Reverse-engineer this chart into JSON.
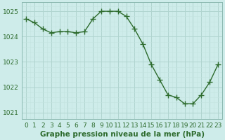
{
  "x": [
    0,
    1,
    2,
    3,
    4,
    5,
    6,
    7,
    8,
    9,
    10,
    11,
    12,
    13,
    14,
    15,
    16,
    17,
    18,
    19,
    20,
    21,
    22,
    23
  ],
  "y": [
    1024.7,
    1024.55,
    1024.3,
    1024.15,
    1024.2,
    1024.2,
    1024.15,
    1024.2,
    1024.7,
    1025.0,
    1025.0,
    1025.0,
    1024.8,
    1024.3,
    1023.7,
    1022.9,
    1022.3,
    1021.7,
    1021.6,
    1021.35,
    1021.35,
    1021.7,
    1022.2,
    1022.9
  ],
  "line_color": "#2d6b2d",
  "marker": "D",
  "marker_size": 2.2,
  "line_width": 1.0,
  "bg_color": "#ceecea",
  "grid_major_color": "#b0d4cf",
  "grid_minor_color": "#c4e4e0",
  "title": "Graphe pression niveau de la mer (hPa)",
  "ylim": [
    1020.75,
    1025.35
  ],
  "xlim": [
    -0.5,
    23.5
  ],
  "yticks": [
    1021,
    1022,
    1023,
    1024,
    1025
  ],
  "xtick_labels": [
    "0",
    "1",
    "2",
    "3",
    "4",
    "5",
    "6",
    "7",
    "8",
    "9",
    "10",
    "11",
    "12",
    "13",
    "14",
    "15",
    "16",
    "17",
    "18",
    "19",
    "20",
    "21",
    "22",
    "23"
  ],
  "title_fontsize": 7.5,
  "tick_fontsize": 6.5,
  "tick_color": "#2d6b2d",
  "title_color": "#2d6b2d",
  "spine_color": "#8ab8b0"
}
